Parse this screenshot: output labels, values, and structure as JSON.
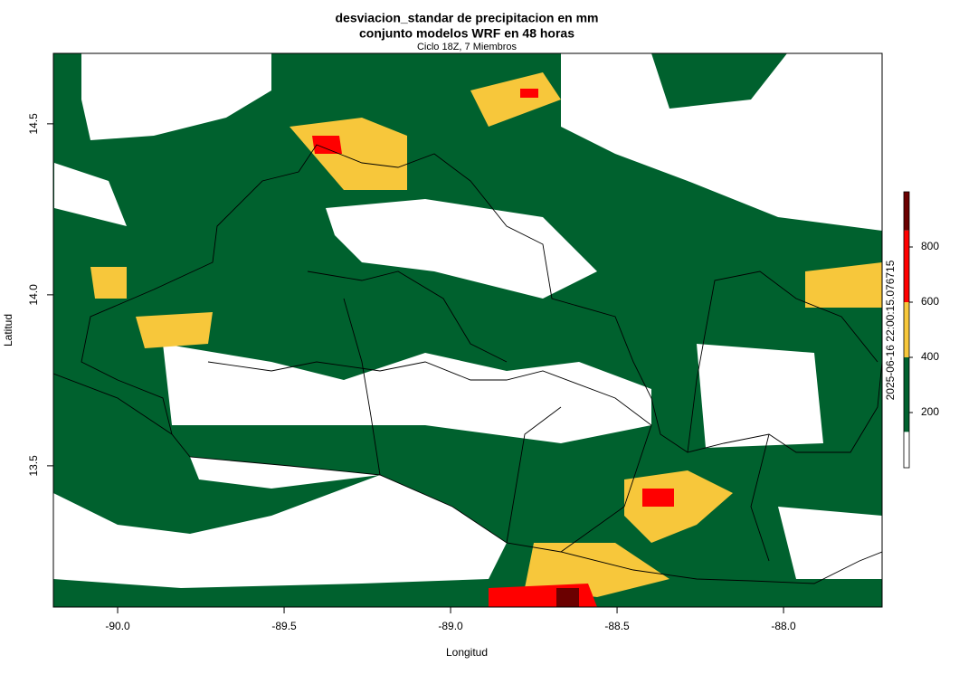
{
  "chart_data": {
    "type": "map",
    "title": "desviacion_standar de precipitacion en mm",
    "title_line2": "conjunto modelos WRF en 48 horas",
    "subtitle": "Ciclo 18Z, 7 Miembros",
    "xlabel": "Longitud",
    "ylabel": "Latitud",
    "xlim": [
      -90.193,
      -87.704
    ],
    "ylim": [
      13.087,
      14.706
    ],
    "xticks": [
      {
        "value": -90,
        "label": "-90.0"
      },
      -89.5,
      {
        "value": -89,
        "label": "-89.0"
      },
      -88.5,
      {
        "value": -88,
        "label": "-88.0"
      }
    ],
    "yticks": [
      13.5,
      {
        "value": 14,
        "label": "14.0"
      },
      14.5
    ],
    "colorbar": {
      "label": "2025-06-16 22:00:15.076715",
      "bins": [
        0,
        130,
        400,
        600,
        860,
        1000
      ],
      "colors": [
        "#ffffff",
        "#00612e",
        "#f7c73b",
        "#ff0000",
        "#6b0000"
      ],
      "lim": [
        0,
        1000
      ],
      "ticks": [
        200,
        400,
        600,
        800
      ]
    }
  }
}
